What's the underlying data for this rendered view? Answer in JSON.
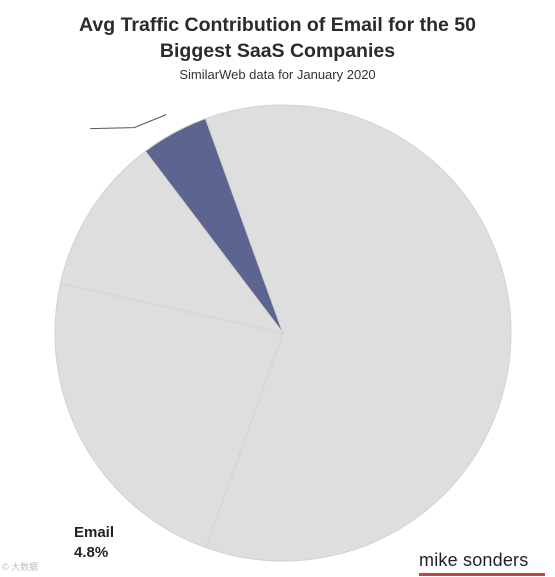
{
  "chart_data": {
    "type": "pie",
    "title_line1": "Avg Traffic Contribution of Email for the 50",
    "title_line2": "Biggest SaaS Companies",
    "subtitle": "SimilarWeb data for January 2020",
    "slices": [
      {
        "name": "Email",
        "value": 4.8,
        "value_label": "4.8%",
        "color": "#5c6490",
        "labeled": true
      },
      {
        "name": "",
        "value": 61.0,
        "color": "#dedede",
        "labeled": false
      },
      {
        "name": "",
        "value": 23.0,
        "color": "#dedede",
        "labeled": false
      },
      {
        "name": "",
        "value": 11.2,
        "color": "#dedede",
        "labeled": false
      }
    ],
    "slice_border_color": "#d3d3d3"
  },
  "brand": {
    "text": "mike sonders",
    "underline_color": "#c94040"
  },
  "watermark": {
    "text": "© 大数据"
  }
}
